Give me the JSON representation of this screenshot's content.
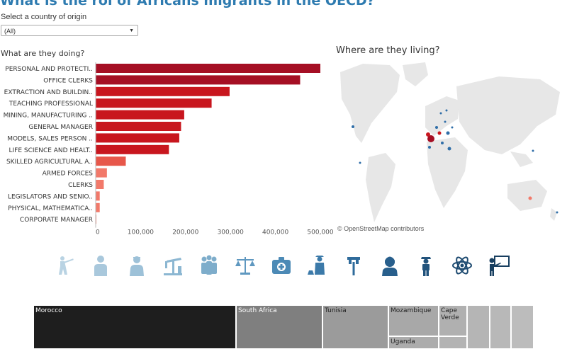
{
  "header": {
    "title": "What is the rol of Africans migrants in the OECD?"
  },
  "filter": {
    "label": "Select a country of origin",
    "selected": "(All)"
  },
  "sections": {
    "left_title": "What are they doing?",
    "right_title": "Where are they living?"
  },
  "map": {
    "credit": "© OpenStreetMap contributors"
  },
  "chart_data": {
    "type": "bar",
    "orientation": "horizontal",
    "categories": [
      "PERSONAL AND PROTECTI..",
      "OFFICE CLERKS",
      "EXTRACTION AND BUILDIN..",
      "TEACHING PROFESSIONAL",
      "MINING, MANUFACTURING ..",
      "GENERAL MANAGER",
      "MODELS, SALES PERSON ..",
      "LIFE SCIENCE AND HEALT..",
      "SKILLED AGRICULTURAL A..",
      "ARMED FORCES",
      "CLERKS",
      "LEGISLATORS AND SENIO..",
      "PHYSICAL, MATHEMATICA..",
      "CORPORATE MANAGER"
    ],
    "values": [
      500000,
      455000,
      298000,
      258000,
      197000,
      190000,
      186000,
      163000,
      67000,
      25000,
      18000,
      9000,
      9000,
      1000
    ],
    "xlim": [
      0,
      500000
    ],
    "ticks": [
      0,
      100000,
      200000,
      300000,
      400000,
      500000
    ],
    "tick_labels": [
      "0",
      "100,000",
      "200,000",
      "300,000",
      "400,000",
      "500,000"
    ],
    "grid": false
  },
  "colors": {
    "bar_dark": "#a50f24",
    "bar_mid": "#c8161e",
    "bar_light": "#e7574a",
    "bar_pale": "#f2796a",
    "title": "#2e7bb0"
  },
  "icons": [
    "hunter-icon",
    "person-icon",
    "nurse-icon",
    "oil-pump-icon",
    "group-icon",
    "justice-scale-icon",
    "medical-kit-icon",
    "farmer-icon",
    "mining-tool-icon",
    "receptionist-icon",
    "soldier-icon",
    "atom-icon",
    "teacher-icon"
  ],
  "treemap": [
    {
      "label": "Morocco"
    },
    {
      "label": "South Africa"
    },
    {
      "label": "Tunisia"
    },
    {
      "label": "Mozambique"
    },
    {
      "label": "Uganda"
    },
    {
      "label": "Cape Verde"
    },
    {
      "label": ""
    },
    {
      "label": ""
    },
    {
      "label": ""
    },
    {
      "label": ""
    }
  ]
}
